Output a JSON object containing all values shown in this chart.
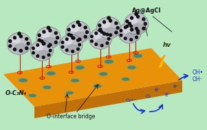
{
  "bg_color": "#b8e8c0",
  "platform_top_color": "#e8920a",
  "platform_front_color": "#c07008",
  "platform_right_color": "#d48010",
  "hole_color": "#8ab890",
  "hole_edge_color": "#6a9870",
  "sphere_color": "#c0c0c8",
  "sphere_highlight": "#e8e8f0",
  "sphere_shadow_color": "#707078",
  "dot_color": "#111111",
  "stem_color": "#cc1111",
  "ring_color": "#cc1111",
  "label_OC3N4": "O-C₃N₄",
  "label_bridge": "O-interface bridge",
  "label_AgAgCl": "Ag@AgCl",
  "label_hv": "hv",
  "label_OH1": "OH•",
  "label_OH2": "OH⁻",
  "label_O2rad": "O₂•⁻",
  "label_O2": "O₂",
  "label_e1": "e⁻",
  "label_e2": "e⁻",
  "label_e3": "e⁻",
  "arrow_color": "#1133cc",
  "text_color": "#111111"
}
